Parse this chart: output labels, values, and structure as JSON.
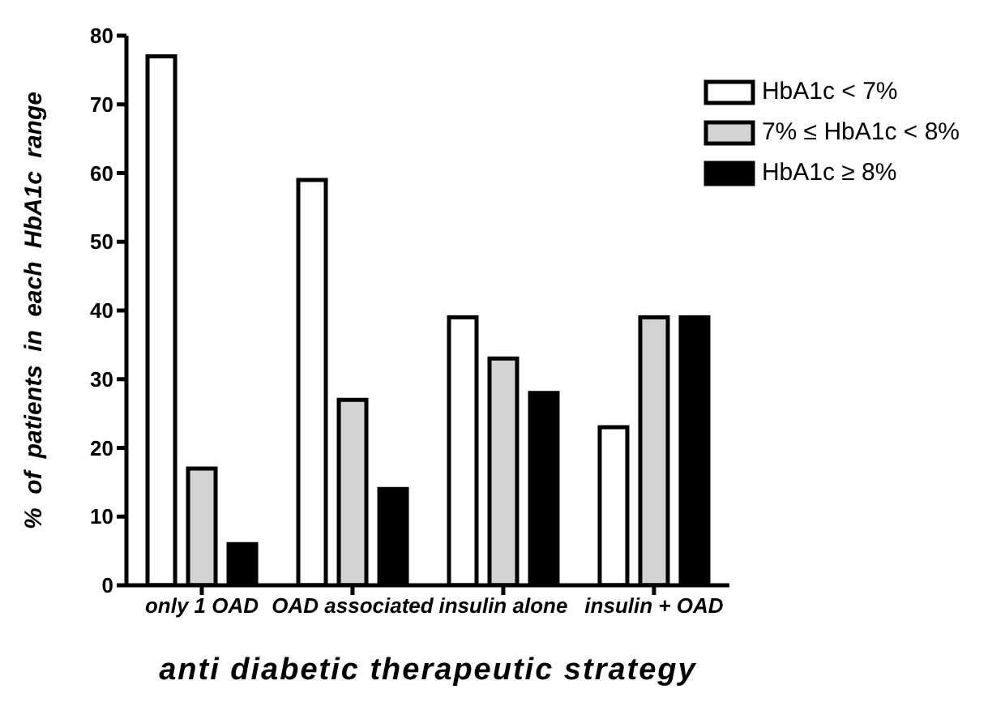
{
  "chart_data": {
    "type": "bar",
    "xlabel": "anti diabetic therapeutic strategy",
    "ylabel": "% of patients in each HbA1c range",
    "categories": [
      "only 1 OAD",
      "OAD associated",
      "insulin alone",
      "insulin + OAD"
    ],
    "series": [
      {
        "name": "HbA1c < 7%",
        "color": "#ffffff",
        "values": [
          77,
          59,
          39,
          23
        ]
      },
      {
        "name": "7% ≤ HbA1c < 8%",
        "color": "#d3d3d3",
        "values": [
          17,
          27,
          33,
          39
        ]
      },
      {
        "name": "HbA1c ≥ 8%",
        "color": "#000000",
        "values": [
          6,
          14,
          28,
          39
        ]
      }
    ],
    "ylim": [
      0,
      80
    ],
    "yticks": [
      0,
      10,
      20,
      30,
      40,
      50,
      60,
      70,
      80
    ],
    "grid": false,
    "legend": "top right"
  }
}
